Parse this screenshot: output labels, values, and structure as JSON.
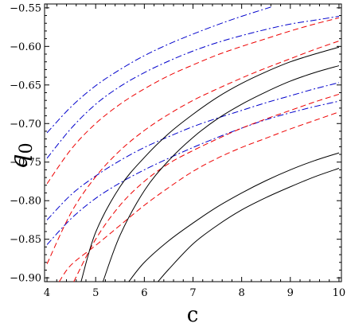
{
  "chart_data": {
    "type": "line",
    "xlabel": "c",
    "ylabel": "q",
    "ylabel_sub": "0",
    "xlim": [
      3.95,
      10.05
    ],
    "ylim": [
      -0.905,
      -0.545
    ],
    "xticks": [
      4,
      5,
      6,
      7,
      8,
      9,
      10
    ],
    "yticks": [
      -0.55,
      -0.6,
      -0.65,
      -0.7,
      -0.75,
      -0.8,
      -0.85,
      -0.9
    ],
    "xtick_labels": [
      "4",
      "5",
      "6",
      "7",
      "8",
      "9",
      "10"
    ],
    "ytick_labels": [
      "−0.55",
      "−0.60",
      "−0.65",
      "−0.70",
      "−0.75",
      "−0.80",
      "−0.85",
      "−0.90"
    ],
    "grid": false,
    "series": [
      {
        "style": "dashdot",
        "color": "#0000cc",
        "x": [
          4.0,
          4.5,
          5,
          5.5,
          6,
          6.5,
          7,
          7.5,
          8,
          8.6
        ],
        "y": [
          -0.712,
          -0.678,
          -0.651,
          -0.63,
          -0.612,
          -0.597,
          -0.584,
          -0.572,
          -0.561,
          -0.549
        ]
      },
      {
        "style": "dashdot",
        "color": "#0000cc",
        "x": [
          4.0,
          4.5,
          5,
          5.5,
          6,
          6.5,
          7,
          7.5,
          8,
          8.5,
          9,
          9.5,
          10
        ],
        "y": [
          -0.745,
          -0.706,
          -0.675,
          -0.652,
          -0.634,
          -0.619,
          -0.606,
          -0.595,
          -0.586,
          -0.578,
          -0.571,
          -0.566,
          -0.561
        ]
      },
      {
        "style": "dashdot",
        "color": "#0000cc",
        "x": [
          4.0,
          4.5,
          5,
          5.5,
          6,
          6.5,
          7,
          7.5,
          8,
          8.5,
          9,
          9.5,
          10
        ],
        "y": [
          -0.825,
          -0.792,
          -0.768,
          -0.748,
          -0.731,
          -0.717,
          -0.704,
          -0.693,
          -0.683,
          -0.673,
          -0.664,
          -0.655,
          -0.647
        ]
      },
      {
        "style": "dashdot",
        "color": "#0000cc",
        "x": [
          4.0,
          4.5,
          5,
          5.5,
          6,
          6.5,
          7,
          7.5,
          8,
          8.5,
          9,
          9.5,
          10
        ],
        "y": [
          -0.857,
          -0.823,
          -0.797,
          -0.777,
          -0.76,
          -0.745,
          -0.731,
          -0.718,
          -0.706,
          -0.695,
          -0.686,
          -0.678,
          -0.671
        ]
      },
      {
        "style": "dashed",
        "color": "#ee0000",
        "x": [
          4.0,
          4.5,
          5,
          5.5,
          6,
          6.5,
          7,
          7.5,
          8,
          8.5,
          9,
          9.5,
          10
        ],
        "y": [
          -0.778,
          -0.733,
          -0.7,
          -0.675,
          -0.655,
          -0.638,
          -0.624,
          -0.611,
          -0.6,
          -0.59,
          -0.58,
          -0.571,
          -0.563
        ]
      },
      {
        "style": "dashed",
        "color": "#ee0000",
        "x": [
          4.0,
          4.5,
          5,
          5.5,
          6,
          6.5,
          7,
          7.5,
          8,
          8.5,
          9,
          9.5,
          10
        ],
        "y": [
          -0.882,
          -0.815,
          -0.769,
          -0.735,
          -0.709,
          -0.688,
          -0.67,
          -0.655,
          -0.641,
          -0.628,
          -0.616,
          -0.604,
          -0.593
        ]
      },
      {
        "style": "dashed",
        "color": "#ee0000",
        "x": [
          4.55,
          5,
          5.5,
          6,
          6.5,
          7,
          7.5,
          8,
          8.5,
          9,
          9.5,
          10
        ],
        "y": [
          -0.905,
          -0.85,
          -0.806,
          -0.775,
          -0.752,
          -0.735,
          -0.72,
          -0.706,
          -0.694,
          -0.683,
          -0.672,
          -0.662
        ]
      },
      {
        "style": "dashed",
        "color": "#ee0000",
        "x": [
          4.25,
          4.5,
          5,
          5.5,
          6,
          6.5,
          7,
          7.5,
          8,
          8.5,
          9,
          9.5,
          10
        ],
        "y": [
          -0.905,
          -0.883,
          -0.858,
          -0.832,
          -0.806,
          -0.783,
          -0.762,
          -0.745,
          -0.731,
          -0.719,
          -0.707,
          -0.696,
          -0.685
        ]
      },
      {
        "style": "solid",
        "color": "#000000",
        "x": [
          4.7,
          5,
          5.5,
          6,
          6.5,
          7,
          7.5,
          8,
          8.5,
          9,
          9.5,
          10
        ],
        "y": [
          -0.905,
          -0.841,
          -0.782,
          -0.744,
          -0.713,
          -0.688,
          -0.666,
          -0.648,
          -0.633,
          -0.62,
          -0.61,
          -0.601
        ]
      },
      {
        "style": "solid",
        "color": "#000000",
        "x": [
          5.15,
          5.5,
          6,
          6.5,
          7,
          7.5,
          8,
          8.5,
          9,
          9.5,
          10
        ],
        "y": [
          -0.905,
          -0.845,
          -0.787,
          -0.748,
          -0.718,
          -0.694,
          -0.675,
          -0.659,
          -0.645,
          -0.634,
          -0.625
        ]
      },
      {
        "style": "solid",
        "color": "#000000",
        "x": [
          5.68,
          6,
          6.5,
          7,
          7.5,
          8,
          8.5,
          9,
          9.5,
          10
        ],
        "y": [
          -0.905,
          -0.88,
          -0.852,
          -0.829,
          -0.808,
          -0.79,
          -0.774,
          -0.76,
          -0.748,
          -0.738
        ]
      },
      {
        "style": "solid",
        "color": "#000000",
        "x": [
          6.28,
          6.5,
          7,
          7.5,
          8,
          8.5,
          9,
          9.5,
          10
        ],
        "y": [
          -0.905,
          -0.889,
          -0.856,
          -0.832,
          -0.812,
          -0.796,
          -0.782,
          -0.769,
          -0.758
        ]
      }
    ]
  }
}
